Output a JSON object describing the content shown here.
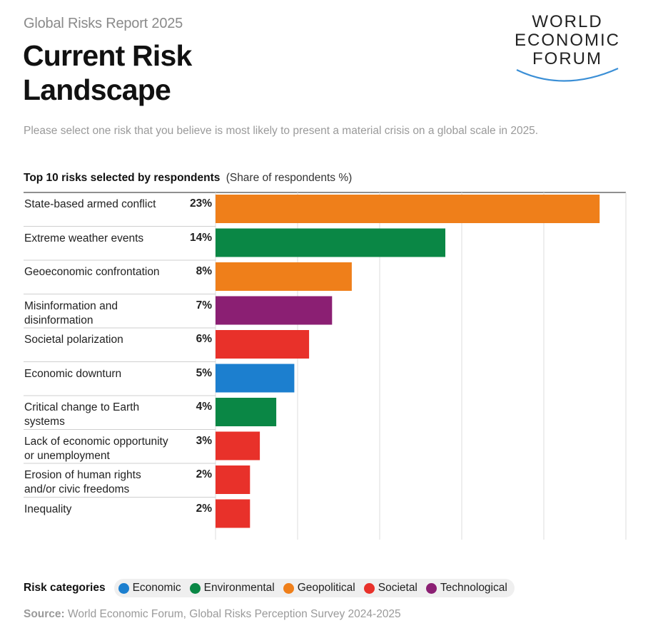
{
  "header": {
    "report_label": "Global Risks Report 2025",
    "title_line1": "Current Risk",
    "title_line2": "Landscape",
    "logo_lines": [
      "WORLD",
      "ECONOMIC",
      "FORUM"
    ]
  },
  "prompt": "Please select one risk that you believe is most likely to present a material crisis on a global scale in 2025.",
  "chart_heading": {
    "title": "Top 10 risks selected by respondents",
    "unit": "(Share of respondents %)"
  },
  "colors": {
    "Economic": "#1c7fcf",
    "Environmental": "#0a8745",
    "Geopolitical": "#ef7f1a",
    "Societal": "#e8312a",
    "Technological": "#8b1f73",
    "grid": "#dddddd",
    "row_divider": "#cfcfcf"
  },
  "chart_data": {
    "type": "bar",
    "orientation": "horizontal",
    "title": "Top 10 risks selected by respondents",
    "unit": "(Share of respondents %)",
    "xlim": [
      0,
      25
    ],
    "gridlines": [
      0,
      5,
      10,
      15,
      20,
      25
    ],
    "grid": true,
    "categories": [
      "State-based armed conflict",
      "Extreme weather events",
      "Geoeconomic confrontation",
      "Misinformation and disinformation",
      "Societal polarization",
      "Economic downturn",
      "Critical change to Earth systems",
      "Lack of economic opportunity or unemployment",
      "Erosion of human rights and/or civic freedoms",
      "Inequality"
    ],
    "label_lines": [
      [
        "State-based armed conflict"
      ],
      [
        "Extreme weather events"
      ],
      [
        "Geoeconomic confrontation"
      ],
      [
        "Misinformation and",
        "disinformation"
      ],
      [
        "Societal polarization"
      ],
      [
        "Economic downturn"
      ],
      [
        "Critical change to Earth",
        "systems"
      ],
      [
        "Lack of economic opportunity",
        "or unemployment"
      ],
      [
        "Erosion of human rights",
        "and/or civic freedoms"
      ],
      [
        "Inequality"
      ]
    ],
    "values": [
      23.4,
      14,
      8.3,
      7.1,
      5.7,
      4.8,
      3.7,
      2.7,
      2.1,
      2.1
    ],
    "value_labels": [
      "23%",
      "14%",
      "8%",
      "7%",
      "6%",
      "5%",
      "4%",
      "3%",
      "2%",
      "2%"
    ],
    "category_group": [
      "Geopolitical",
      "Environmental",
      "Geopolitical",
      "Technological",
      "Societal",
      "Economic",
      "Environmental",
      "Societal",
      "Societal",
      "Societal"
    ],
    "legend_placement": "bottom"
  },
  "legend": {
    "title": "Risk categories",
    "items": [
      "Economic",
      "Environmental",
      "Geopolitical",
      "Societal",
      "Technological"
    ]
  },
  "source": {
    "label": "Source:",
    "text": "World Economic Forum, Global Risks Perception Survey 2024-2025"
  }
}
